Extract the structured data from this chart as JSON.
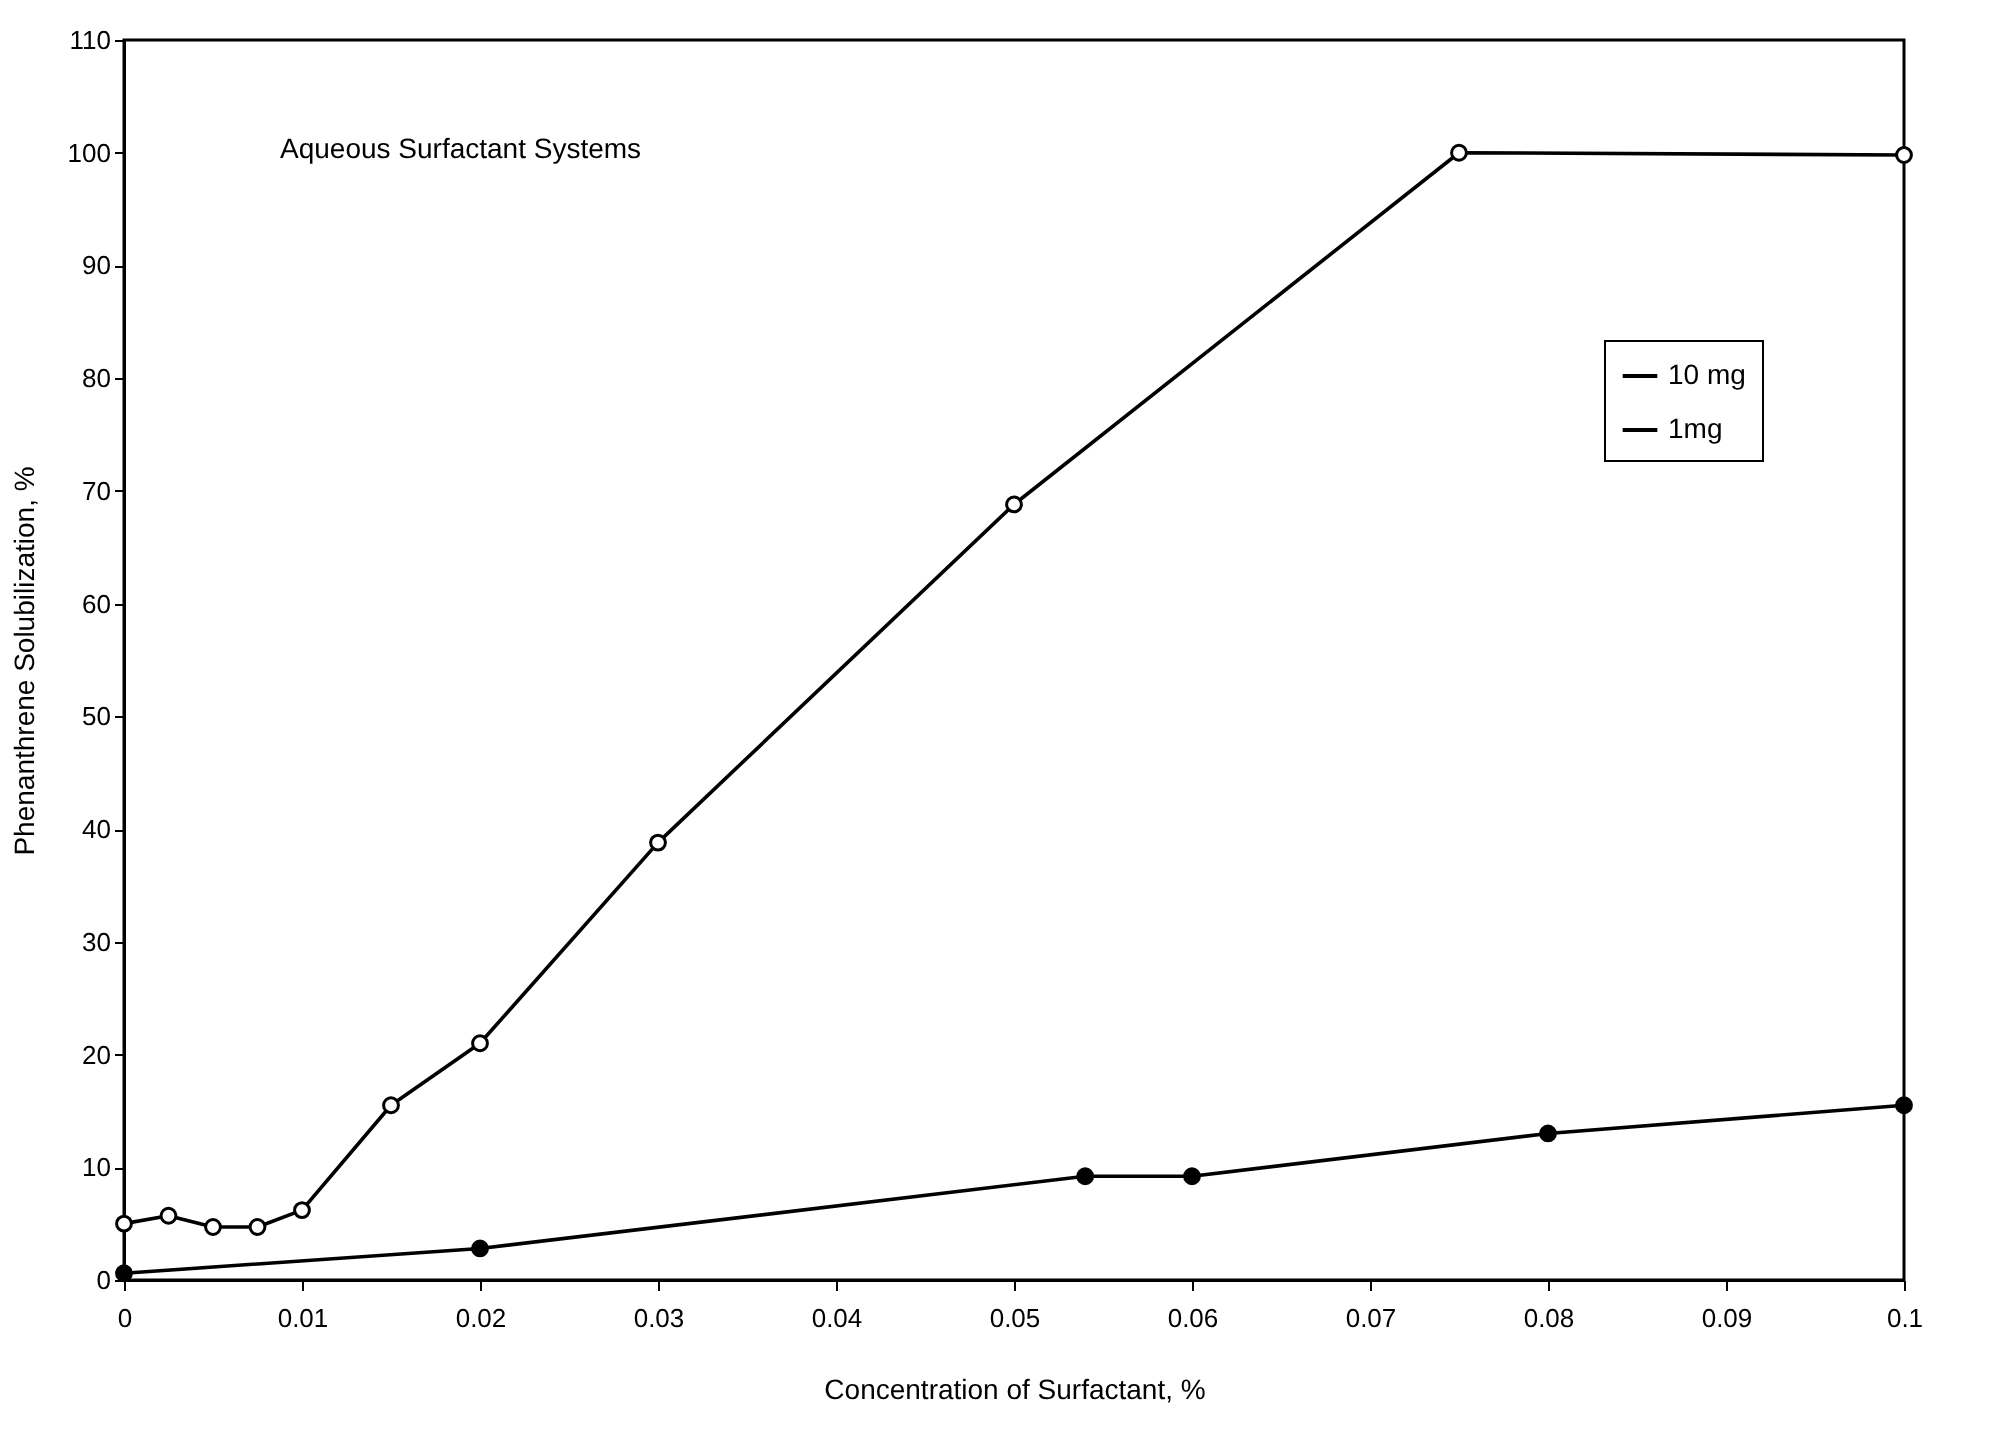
{
  "chart_data": {
    "type": "line",
    "xlabel": "Concentration of Surfactant, %",
    "ylabel": "Phenanthrene Solubilization, %",
    "annotations": [
      "Aqueous Surfactant Systems"
    ],
    "series": [
      {
        "name": "10 mg",
        "color": "#000000",
        "x": [
          0,
          0.02,
          0.054,
          0.06,
          0.08,
          0.1
        ],
        "values": [
          0.6,
          2.8,
          9.2,
          9.2,
          13,
          15.5
        ]
      },
      {
        "name": "1mg",
        "color": "#000000",
        "x": [
          0,
          0.0025,
          0.005,
          0.0075,
          0.01,
          0.015,
          0.02,
          0.03,
          0.05,
          0.075,
          0.1
        ],
        "values": [
          5,
          5.7,
          4.7,
          4.7,
          6.2,
          15.5,
          21,
          38.8,
          68.8,
          100,
          99.8
        ]
      }
    ],
    "xlim": [
      0,
      0.1
    ],
    "xticks": [
      0,
      0.01,
      0.02,
      0.03,
      0.04,
      0.05,
      0.06,
      0.07,
      0.08,
      0.09,
      0.1
    ],
    "ylim": [
      0,
      110
    ],
    "yticks": [
      0,
      10,
      20,
      30,
      40,
      50,
      60,
      70,
      80,
      90,
      100,
      110
    ],
    "grid": false,
    "legend": "right",
    "marker": "circle",
    "line_style": "solid"
  }
}
